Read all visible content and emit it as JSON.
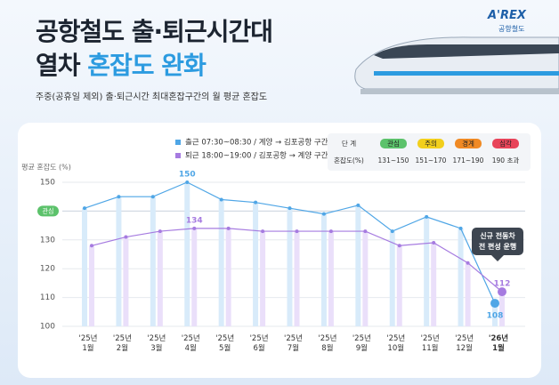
{
  "header": {
    "title_line1": "공항철도 출·퇴근시간대",
    "title_line2_a": "열차",
    "title_line2_b": "혼잡도 완화",
    "subtitle": "주중(공휴일 제외) 출·퇴근시간 최대혼잡구간의 월 평균 혼잡도",
    "logo": "A'REX",
    "logo_sub": "공항철도"
  },
  "chart_data": {
    "type": "line",
    "y_label": "평균 혼잡도 (%)",
    "categories": [
      "'25년 1월",
      "'25년 2월",
      "'25년 3월",
      "'25년 4월",
      "'25년 5월",
      "'25년 6월",
      "'25년 7월",
      "'25년 8월",
      "'25년 9월",
      "'25년 10월",
      "'25년 11월",
      "'25년 12월",
      "'26년 1월"
    ],
    "series": [
      {
        "name": "출근 07:30~08:30 / 계양 → 김포공항 구간",
        "color": "#4fa6e6",
        "values": [
          141,
          145,
          145,
          150,
          144,
          143,
          141,
          139,
          142,
          133,
          138,
          134,
          108
        ],
        "value_labels": [
          null,
          null,
          null,
          "150",
          null,
          null,
          null,
          null,
          null,
          null,
          null,
          null,
          "108"
        ]
      },
      {
        "name": "퇴근 18:00~19:00 / 김포공항 → 계양 구간",
        "color": "#a67be0",
        "values": [
          128,
          131,
          133,
          134,
          134,
          133,
          133,
          133,
          133,
          128,
          129,
          122,
          112
        ],
        "value_labels": [
          null,
          null,
          null,
          "134",
          null,
          null,
          null,
          null,
          null,
          null,
          null,
          null,
          "112"
        ]
      }
    ],
    "ylim": [
      100,
      150
    ],
    "yticks": [
      100,
      110,
      120,
      130,
      140,
      150
    ],
    "grid": true,
    "reference": {
      "value": 140,
      "label": "관심"
    },
    "annotation": "신규 전동차 전 편성 운행"
  },
  "congestion_table": {
    "header": [
      "단 계",
      "관심",
      "주의",
      "경계",
      "심각"
    ],
    "row": [
      "혼잡도(%)",
      "131~150",
      "151~170",
      "171~190",
      "190 초과"
    ],
    "colors": [
      "#5cc26b",
      "#f2cf1d",
      "#f08a24",
      "#e8445a"
    ]
  }
}
